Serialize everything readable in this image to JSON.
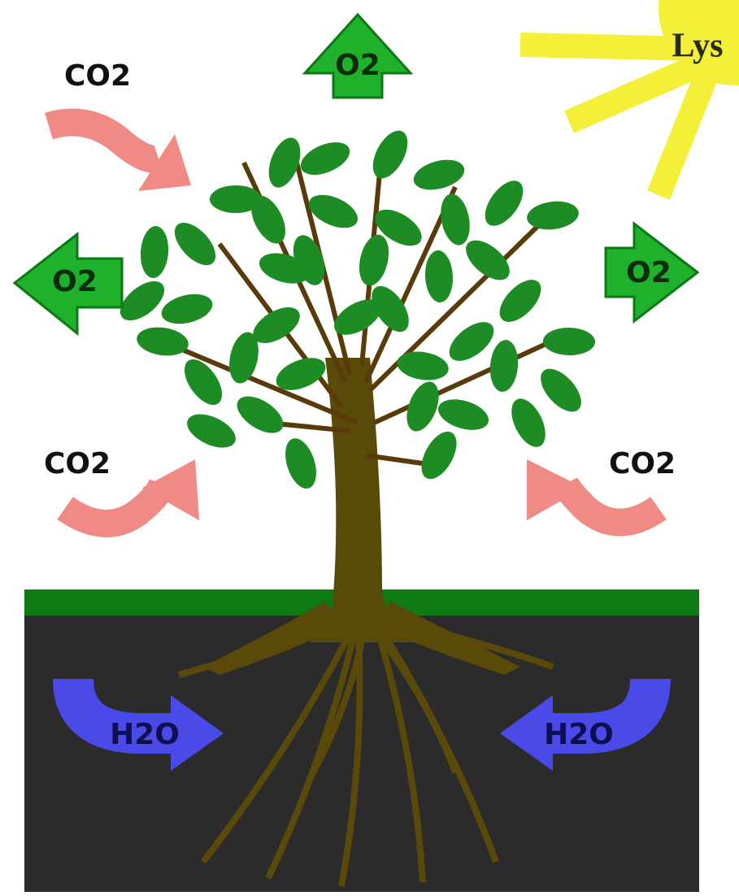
{
  "sun": {
    "label": "Lys"
  },
  "o2_arrows": [
    {
      "label": "O2"
    },
    {
      "label": "O2"
    },
    {
      "label": "O2"
    }
  ],
  "co2_arrows": [
    {
      "label": "CO2"
    },
    {
      "label": "CO2"
    },
    {
      "label": "CO2"
    }
  ],
  "h2o_arrows": [
    {
      "label": "H2O"
    },
    {
      "label": "H2O"
    }
  ]
}
